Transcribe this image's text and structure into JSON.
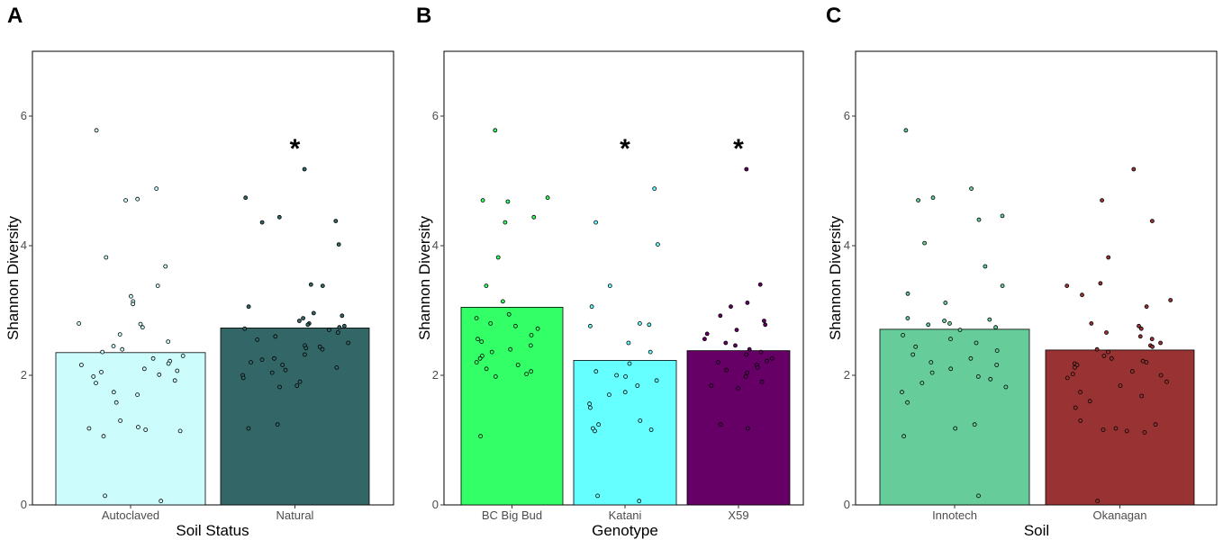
{
  "chart_data": [
    {
      "type": "bar",
      "panel": "A",
      "ylabel": "Shannon Diversity",
      "xlabel": "Soil Status",
      "ylim": [
        0,
        7
      ],
      "yticks": [
        "0",
        "2",
        "4",
        "6"
      ],
      "categories": [
        "Autoclaved",
        "Natural"
      ],
      "values": [
        2.35,
        2.73
      ],
      "colors": [
        "#ccfcfc",
        "#336666"
      ],
      "significance": [
        "",
        "*"
      ],
      "points": [
        [
          5.78,
          4.88,
          4.72,
          4.7,
          3.82,
          3.68,
          3.38,
          3.22,
          3.14,
          3.1,
          2.8,
          2.79,
          2.74,
          2.63,
          2.52,
          2.45,
          2.4,
          2.36,
          2.3,
          2.26,
          2.22,
          2.18,
          2.16,
          2.1,
          2.07,
          2.05,
          2.01,
          1.98,
          1.92,
          1.88,
          1.74,
          1.7,
          1.58,
          1.3,
          1.2,
          1.18,
          1.16,
          1.14,
          1.06,
          0.14,
          0.06
        ],
        [
          5.18,
          4.74,
          4.44,
          4.38,
          4.36,
          4.02,
          3.4,
          3.38,
          3.06,
          2.96,
          2.92,
          2.88,
          2.84,
          2.8,
          2.78,
          2.76,
          2.74,
          2.72,
          2.7,
          2.66,
          2.6,
          2.55,
          2.5,
          2.46,
          2.44,
          2.42,
          2.4,
          2.32,
          2.26,
          2.24,
          2.2,
          2.16,
          2.12,
          2.08,
          2.04,
          2.0,
          1.96,
          1.9,
          1.84,
          1.82,
          1.24,
          1.18
        ]
      ]
    },
    {
      "type": "bar",
      "panel": "B",
      "ylabel": "Shannon Diversity",
      "xlabel": "Genotype",
      "ylim": [
        0,
        7
      ],
      "yticks": [
        "0",
        "2",
        "4",
        "6"
      ],
      "categories": [
        "BC Big Bud",
        "Katani",
        "X59"
      ],
      "values": [
        3.05,
        2.23,
        2.38
      ],
      "colors": [
        "#33ff66",
        "#66ffff",
        "#660066"
      ],
      "significance": [
        "",
        "*",
        "*"
      ],
      "points": [
        [
          5.78,
          4.74,
          4.7,
          4.68,
          4.44,
          4.36,
          3.82,
          3.38,
          3.14,
          2.94,
          2.88,
          2.8,
          2.76,
          2.72,
          2.62,
          2.56,
          2.52,
          2.46,
          2.4,
          2.36,
          2.3,
          2.26,
          2.2,
          2.16,
          2.1,
          2.06,
          2.02,
          1.98,
          1.06
        ],
        [
          4.88,
          4.36,
          4.02,
          3.38,
          3.06,
          2.8,
          2.78,
          2.76,
          2.5,
          2.36,
          2.18,
          2.06,
          2.0,
          1.98,
          1.92,
          1.84,
          1.74,
          1.7,
          1.56,
          1.5,
          1.3,
          1.24,
          1.18,
          1.16,
          1.14,
          0.14,
          0.06
        ],
        [
          5.18,
          3.4,
          3.12,
          3.06,
          2.92,
          2.84,
          2.78,
          2.7,
          2.64,
          2.56,
          2.5,
          2.46,
          2.4,
          2.36,
          2.32,
          2.26,
          2.22,
          2.2,
          2.16,
          2.12,
          2.08,
          2.04,
          1.98,
          1.9,
          1.84,
          1.8,
          1.24,
          1.18
        ]
      ]
    },
    {
      "type": "bar",
      "panel": "C",
      "ylabel": "Shannon Diversity",
      "xlabel": "Soil",
      "ylim": [
        0,
        7
      ],
      "yticks": [
        "0",
        "2",
        "4",
        "6"
      ],
      "categories": [
        "Innotech",
        "Okanagan"
      ],
      "values": [
        2.71,
        2.39
      ],
      "colors": [
        "#66cc99",
        "#993333"
      ],
      "significance": [
        "",
        ""
      ],
      "points": [
        [
          5.78,
          4.88,
          4.74,
          4.7,
          4.46,
          4.4,
          4.04,
          3.68,
          3.38,
          3.26,
          3.12,
          2.88,
          2.86,
          2.84,
          2.8,
          2.78,
          2.74,
          2.7,
          2.62,
          2.56,
          2.5,
          2.44,
          2.38,
          2.32,
          2.26,
          2.2,
          2.16,
          2.1,
          2.04,
          1.98,
          1.94,
          1.88,
          1.82,
          1.74,
          1.58,
          1.24,
          1.18,
          1.06,
          0.14
        ],
        [
          5.18,
          4.7,
          4.38,
          3.82,
          3.42,
          3.38,
          3.24,
          3.16,
          3.06,
          2.8,
          2.76,
          2.72,
          2.66,
          2.6,
          2.56,
          2.5,
          2.46,
          2.44,
          2.4,
          2.36,
          2.3,
          2.26,
          2.22,
          2.2,
          2.18,
          2.16,
          2.12,
          2.06,
          2.02,
          2.0,
          1.96,
          1.9,
          1.84,
          1.74,
          1.68,
          1.6,
          1.5,
          1.3,
          1.24,
          1.18,
          1.16,
          1.14,
          1.12,
          0.06
        ]
      ]
    }
  ]
}
